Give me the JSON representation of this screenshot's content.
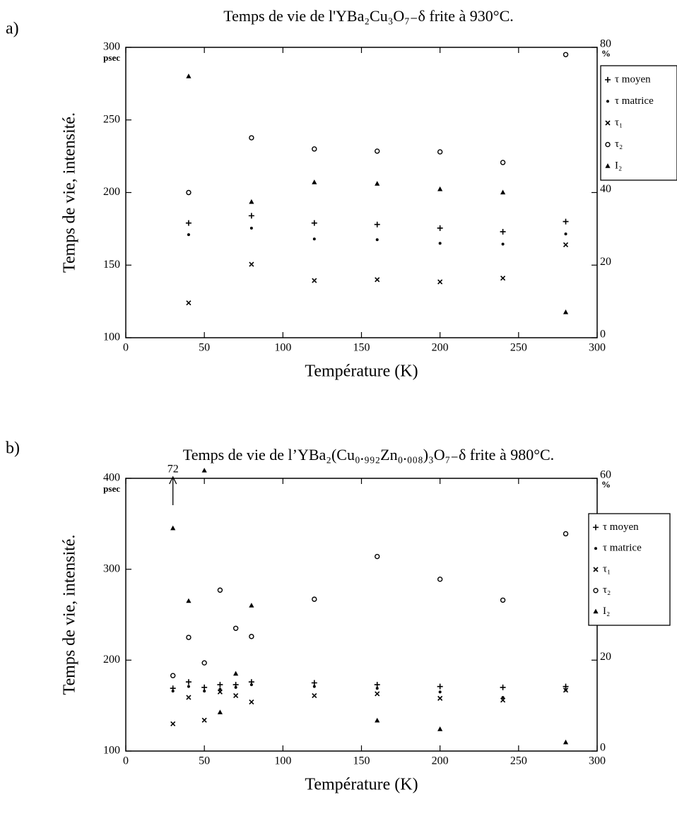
{
  "chart_data": [
    {
      "type": "scatter",
      "panel": "a)",
      "title": "Temps de vie de l'YBa₂Cu₃O₇₋δ frite à 930°C.",
      "x_label": "Température (K)",
      "y_label": "Temps de vie, intensité.",
      "y_unit": "psec",
      "y2_unit": "%",
      "xlim": [
        0,
        300
      ],
      "xticks": [
        0,
        50,
        100,
        150,
        200,
        250,
        300
      ],
      "ylim": [
        100,
        300
      ],
      "yticks": [
        100,
        150,
        200,
        250,
        300
      ],
      "y2lim": [
        0,
        80
      ],
      "y2ticks": [
        0,
        20,
        40,
        80
      ],
      "legend": "right",
      "x": [
        40,
        80,
        120,
        160,
        200,
        240,
        280
      ],
      "series": [
        {
          "name": "τ moyen",
          "marker": "plus",
          "color": "#000000",
          "values": [
            179,
            184,
            179,
            178,
            175.5,
            173,
            180
          ]
        },
        {
          "name": "τ matrice",
          "marker": "dot",
          "color": "#000000",
          "values": [
            171,
            175.5,
            168,
            167.5,
            165,
            164.5,
            171.5
          ]
        },
        {
          "name": "τ₁",
          "marker": "x",
          "color": "#000000",
          "values": [
            124,
            150.6,
            139.4,
            140,
            138.5,
            141,
            164
          ]
        },
        {
          "name": "τ₂",
          "marker": "circle",
          "color": "#000000",
          "values": [
            200,
            237.7,
            230,
            228.5,
            228,
            220.7,
            295
          ]
        },
        {
          "name": "I₂",
          "marker": "triangle",
          "color": "#000000",
          "axis": "y2",
          "values": [
            72,
            37.4,
            42.8,
            42.4,
            40.9,
            40,
            7
          ]
        }
      ]
    },
    {
      "type": "scatter",
      "panel": "b)",
      "title": "Temps de vie de l’YBa₂(Cu₀.₉₉₂Zn₀.₀₀₈)₃O₇₋δ frite à 980°C.",
      "x_label": "Température (K)",
      "y_label": "Temps de vie, intensité.",
      "y_unit": "psec",
      "y2_unit": "%",
      "xlim": [
        0,
        300
      ],
      "xticks": [
        0,
        50,
        100,
        150,
        200,
        250,
        300
      ],
      "ylim": [
        100,
        400
      ],
      "yticks": [
        100,
        200,
        300,
        400
      ],
      "y2lim": [
        0,
        60
      ],
      "y2ticks": [
        0,
        20,
        60
      ],
      "legend": "right",
      "annotations": [
        {
          "text": "72",
          "x": 30
        }
      ],
      "x": [
        30,
        40,
        50,
        60,
        70,
        80,
        120,
        160,
        200,
        240,
        280
      ],
      "series": [
        {
          "name": "τ moyen",
          "marker": "plus",
          "color": "#000000",
          "values": [
            169,
            176,
            170,
            173,
            173,
            176,
            175,
            173,
            171,
            170,
            171
          ]
        },
        {
          "name": "τ matrice",
          "marker": "dot",
          "color": "#000000",
          "values": [
            166,
            171,
            166,
            168,
            170,
            173,
            171,
            169,
            165,
            159,
            167
          ]
        },
        {
          "name": "τ₁",
          "marker": "x",
          "color": "#000000",
          "values": [
            130,
            159,
            134,
            165,
            161,
            154,
            161,
            163,
            158,
            156,
            167
          ]
        },
        {
          "name": "τ₂",
          "marker": "circle",
          "color": "#000000",
          "values": [
            183,
            225,
            197,
            277,
            235,
            226,
            267,
            314,
            289,
            266,
            339
          ]
        },
        {
          "name": "I₂",
          "marker": "triangle",
          "color": "#000000",
          "axis": "y2",
          "values": [
            49,
            33,
            61.7,
            8.5,
            17,
            32,
            null,
            6.7,
            4.8,
            null,
            1.9
          ]
        }
      ]
    }
  ]
}
